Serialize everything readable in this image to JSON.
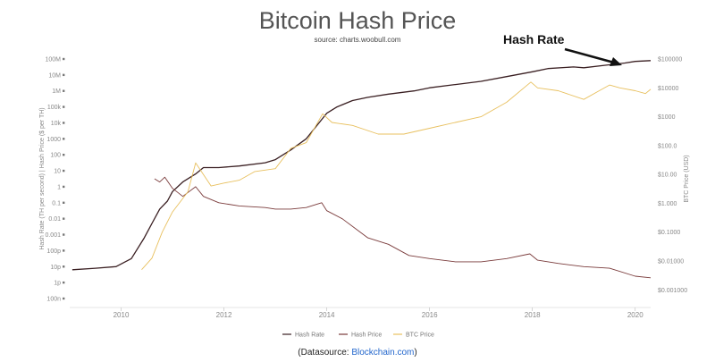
{
  "chart_data": {
    "type": "line",
    "title": "Bitcoin Hash Price",
    "subtitle": "source: charts.woobull.com",
    "annotation": "Hash Rate",
    "y_left_label": "Hash Rate (TH per second) | Hash Price ($ per TH)",
    "y_right_label": "BTC Price (USD)",
    "y_left_ticks": [
      "100n",
      "1p",
      "10p",
      "100p",
      "0.001",
      "0.01",
      "0.1",
      "1",
      "10",
      "100",
      "1000",
      "10k",
      "100k",
      "1M",
      "10M",
      "100M"
    ],
    "y_left_range_log10": [
      -7,
      8
    ],
    "y_right_ticks": [
      "$0.001000",
      "$0.01000",
      "$0.1000",
      "$1.000",
      "$10.00",
      "$100.0",
      "$1000",
      "$10000",
      "$100000"
    ],
    "y_right_range_log10": [
      -3.3,
      5
    ],
    "x_ticks": [
      "2010",
      "2012",
      "2014",
      "2016",
      "2018",
      "2020"
    ],
    "x_range": [
      2009.0,
      2020.3
    ],
    "grid": false,
    "legend_position": "bottom",
    "series": [
      {
        "name": "Hash Rate",
        "color": "#3a1f22",
        "axis": "left",
        "x": [
          2009.05,
          2009.5,
          2009.9,
          2010.2,
          2010.45,
          2010.6,
          2010.75,
          2010.9,
          2011.0,
          2011.2,
          2011.45,
          2011.6,
          2011.9,
          2012.3,
          2012.8,
          2013.0,
          2013.3,
          2013.6,
          2013.8,
          2014.0,
          2014.2,
          2014.5,
          2014.8,
          2015.2,
          2015.7,
          2016.0,
          2016.5,
          2017.0,
          2017.5,
          2018.0,
          2018.3,
          2018.8,
          2019.0,
          2019.4,
          2019.8,
          2020.0,
          2020.3
        ],
        "y": [
          -5.2,
          -5.1,
          -5.0,
          -4.5,
          -3.2,
          -2.3,
          -1.4,
          -0.9,
          -0.3,
          0.3,
          0.8,
          1.2,
          1.2,
          1.3,
          1.5,
          1.7,
          2.3,
          3.0,
          3.8,
          4.6,
          5.0,
          5.4,
          5.6,
          5.8,
          6.0,
          6.2,
          6.4,
          6.6,
          6.9,
          7.2,
          7.4,
          7.5,
          7.45,
          7.6,
          7.75,
          7.85,
          7.9
        ]
      },
      {
        "name": "Hash Price",
        "color": "#7a3b3b",
        "axis": "left",
        "x": [
          2010.65,
          2010.75,
          2010.85,
          2011.0,
          2011.2,
          2011.45,
          2011.6,
          2011.9,
          2012.3,
          2012.8,
          2013.0,
          2013.3,
          2013.6,
          2013.9,
          2014.0,
          2014.3,
          2014.8,
          2015.2,
          2015.6,
          2016.0,
          2016.5,
          2017.0,
          2017.5,
          2017.95,
          2018.1,
          2018.5,
          2019.0,
          2019.5,
          2020.0,
          2020.3
        ],
        "y": [
          0.5,
          0.3,
          0.6,
          -0.1,
          -0.6,
          0.0,
          -0.6,
          -1.0,
          -1.2,
          -1.3,
          -1.4,
          -1.4,
          -1.3,
          -1.0,
          -1.5,
          -2.0,
          -3.2,
          -3.6,
          -4.3,
          -4.5,
          -4.7,
          -4.7,
          -4.5,
          -4.2,
          -4.6,
          -4.8,
          -5.0,
          -5.1,
          -5.6,
          -5.7
        ]
      },
      {
        "name": "BTC Price",
        "color": "#e8c05f",
        "axis": "right",
        "x": [
          2010.4,
          2010.6,
          2010.8,
          2011.0,
          2011.3,
          2011.45,
          2011.6,
          2011.75,
          2012.0,
          2012.3,
          2012.6,
          2013.0,
          2013.3,
          2013.6,
          2013.92,
          2014.1,
          2014.5,
          2015.0,
          2015.5,
          2016.0,
          2016.5,
          2017.0,
          2017.5,
          2017.97,
          2018.1,
          2018.5,
          2019.0,
          2019.3,
          2019.5,
          2019.7,
          2020.0,
          2020.2,
          2020.3
        ],
        "y": [
          -2.3,
          -1.9,
          -1.0,
          -0.3,
          0.4,
          1.4,
          1.0,
          0.6,
          0.7,
          0.8,
          1.1,
          1.2,
          1.9,
          2.1,
          3.1,
          2.8,
          2.7,
          2.4,
          2.4,
          2.6,
          2.8,
          3.0,
          3.5,
          4.2,
          4.0,
          3.9,
          3.6,
          3.9,
          4.1,
          4.0,
          3.9,
          3.8,
          3.95
        ]
      }
    ]
  },
  "footer": {
    "datasource_prefix": "(Datasource: ",
    "datasource_link": "Blockchain.com",
    "datasource_suffix": ")"
  }
}
